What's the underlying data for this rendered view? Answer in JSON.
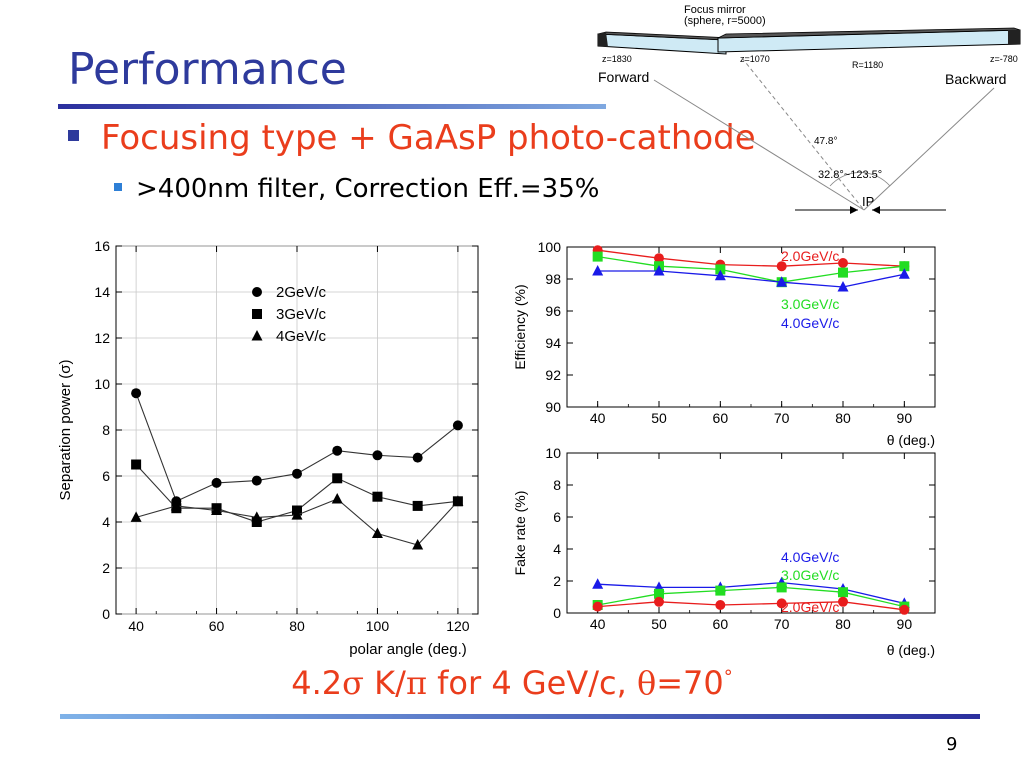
{
  "slide": {
    "title": "Performance",
    "bullet1": "Focusing type + GaAsP photo-cathode",
    "bullet2": ">400nm filter, Correction Eff.=35%",
    "highlight_a": "4.2",
    "highlight_sigma": "σ",
    "highlight_b": " K/",
    "highlight_pi": "π",
    "highlight_c": " for 4 GeV/c, ",
    "highlight_theta": "θ",
    "highlight_d": "=70",
    "highlight_deg": "°",
    "page_number": "9"
  },
  "diagram": {
    "mirror_label_1": "Focus mirror",
    "mirror_label_2": "(sphere, r=5000)",
    "z1": "z=1830",
    "z2": "z=1070",
    "radius": "R=1180",
    "z3": "z=-780",
    "forward": "Forward",
    "backward": "Backward",
    "angle1": "47.8°",
    "angle2": "32.8°~123.5°",
    "ip": "IP"
  },
  "chart_data": [
    {
      "type": "line",
      "ylabel": "Separation power (σ)",
      "xlabel": "polar angle (deg.)",
      "x": [
        40,
        50,
        60,
        70,
        80,
        90,
        100,
        110,
        120
      ],
      "xlim": [
        35,
        125
      ],
      "ylim": [
        0,
        16
      ],
      "xticks": [
        40,
        60,
        80,
        100,
        120
      ],
      "yticks": [
        0,
        2,
        4,
        6,
        8,
        10,
        12,
        14,
        16
      ],
      "legend_position": "top-center",
      "grid": true,
      "series": [
        {
          "name": "2GeV/c",
          "marker": "circle",
          "color": "#000000",
          "values": [
            9.6,
            4.9,
            5.7,
            5.8,
            6.1,
            7.1,
            6.9,
            6.8,
            8.2
          ]
        },
        {
          "name": "3GeV/c",
          "marker": "square",
          "color": "#000000",
          "values": [
            6.5,
            4.6,
            4.6,
            4.0,
            4.5,
            5.9,
            5.1,
            4.7,
            4.9
          ]
        },
        {
          "name": "4GeV/c",
          "marker": "triangle",
          "color": "#000000",
          "values": [
            4.2,
            4.7,
            4.5,
            4.2,
            4.3,
            5.0,
            3.5,
            3.0,
            4.9
          ]
        }
      ]
    },
    {
      "type": "line",
      "ylabel": "Efficiency (%)",
      "xlabel": "θ (deg.)",
      "x": [
        40,
        50,
        60,
        70,
        80,
        90
      ],
      "xlim": [
        35,
        95
      ],
      "ylim": [
        90,
        100
      ],
      "xticks": [
        40,
        50,
        60,
        70,
        80,
        90
      ],
      "yticks": [
        90,
        92,
        94,
        96,
        98,
        100
      ],
      "grid": false,
      "series": [
        {
          "name": "2.0GeV/c",
          "marker": "circle",
          "color": "#e81d1d",
          "values": [
            99.8,
            99.3,
            98.9,
            98.8,
            99.0,
            98.8
          ]
        },
        {
          "name": "3.0GeV/c",
          "marker": "square",
          "color": "#22dd22",
          "values": [
            99.4,
            98.8,
            98.6,
            97.8,
            98.4,
            98.8
          ]
        },
        {
          "name": "4.0GeV/c",
          "marker": "triangle",
          "color": "#1a1ae8",
          "values": [
            98.5,
            98.5,
            98.2,
            97.8,
            97.5,
            98.3
          ]
        }
      ]
    },
    {
      "type": "line",
      "ylabel": "Fake rate (%)",
      "xlabel": "θ (deg.)",
      "x": [
        40,
        50,
        60,
        70,
        80,
        90
      ],
      "xlim": [
        35,
        95
      ],
      "ylim": [
        0,
        10
      ],
      "xticks": [
        40,
        50,
        60,
        70,
        80,
        90
      ],
      "yticks": [
        0,
        2,
        4,
        6,
        8,
        10
      ],
      "grid": false,
      "series": [
        {
          "name": "4.0GeV/c",
          "marker": "triangle",
          "color": "#1a1ae8",
          "values": [
            1.8,
            1.6,
            1.6,
            1.9,
            1.5,
            0.6
          ]
        },
        {
          "name": "3.0GeV/c",
          "marker": "square",
          "color": "#22dd22",
          "values": [
            0.5,
            1.2,
            1.4,
            1.6,
            1.3,
            0.4
          ]
        },
        {
          "name": "2.0GeV/c",
          "marker": "circle",
          "color": "#e81d1d",
          "values": [
            0.4,
            0.7,
            0.5,
            0.6,
            0.7,
            0.2
          ]
        }
      ]
    }
  ]
}
